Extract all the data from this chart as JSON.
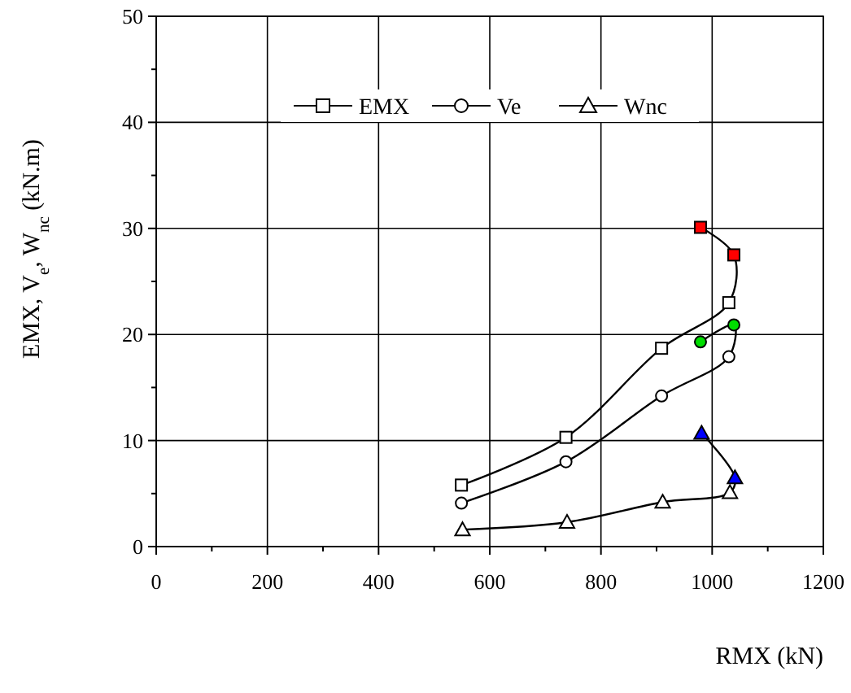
{
  "chart_data": {
    "type": "line",
    "xlabel": "RMX (kN)",
    "ylabel": "EMX, V$_{e}$, W$_{nc}$ (kN.m)",
    "xlim": [
      0,
      1200
    ],
    "ylim": [
      0,
      50
    ],
    "xticks": [
      0,
      {
        "value": 100,
        "label": null
      },
      200,
      {
        "value": 300,
        "label": null
      },
      400,
      {
        "value": 500,
        "label": null
      },
      600,
      {
        "value": 700,
        "label": null
      },
      800,
      {
        "value": 900,
        "label": null
      },
      1000,
      {
        "value": 1100,
        "label": null
      },
      1200
    ],
    "yticks": [
      0,
      {
        "value": 5,
        "label": null
      },
      10,
      {
        "value": 15,
        "label": null
      },
      20,
      {
        "value": 25,
        "label": null
      },
      30,
      {
        "value": 35,
        "label": null
      },
      40,
      {
        "value": 45,
        "label": null
      },
      50
    ],
    "grid": true,
    "legend": "top",
    "line_style": "solid",
    "series": [
      {
        "name": "EMX",
        "color": "#000000",
        "marker": "square",
        "x": [
          549,
          737,
          909,
          1030,
          1039,
          979
        ],
        "values": [
          5.8,
          10.3,
          18.7,
          23.0,
          27.5,
          30.1
        ],
        "colors": [
          "#ffffff",
          "#ffffff",
          "#ffffff",
          "#ffffff",
          "#ff0000",
          "#ff0000"
        ]
      },
      {
        "name": "Ve",
        "color": "#000000",
        "marker": "circle",
        "x": [
          549,
          737,
          909,
          1030,
          1039,
          979
        ],
        "values": [
          4.1,
          8.0,
          14.2,
          17.9,
          20.9,
          19.3
        ],
        "colors": [
          "#ffffff",
          "#ffffff",
          "#ffffff",
          "#ffffff",
          "#00dd00",
          "#00dd00"
        ]
      },
      {
        "name": "Wnc",
        "color": "#000000",
        "marker": "triangle",
        "x": [
          551,
          739,
          911,
          1032,
          1041,
          981
        ],
        "values": [
          1.6,
          2.3,
          4.2,
          5.1,
          6.5,
          10.7
        ],
        "colors": [
          "#ffffff",
          "#ffffff",
          "#ffffff",
          "#ffffff",
          "#0000ff",
          "#0000ff"
        ]
      }
    ]
  }
}
